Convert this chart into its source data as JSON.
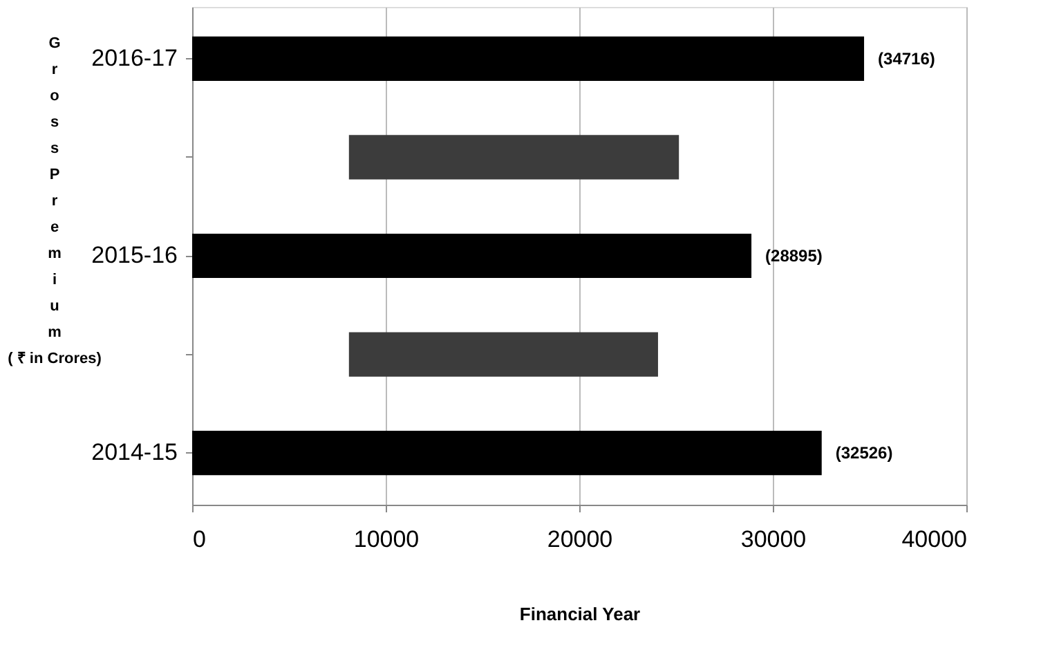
{
  "chart_data": {
    "type": "bar",
    "orientation": "horizontal",
    "xlabel": "Financial Year",
    "ylabel": "Gross Premium",
    "annotations": [
      "( ₹ in Crores)"
    ],
    "categories": [
      "2016-17",
      null,
      "2015-16",
      null,
      "2014-15"
    ],
    "values": [
      34716,
      17050,
      28895,
      15970,
      32526
    ],
    "base": [
      0,
      8100,
      0,
      8100,
      0
    ],
    "colors": [
      "#000000",
      "#3c3c3c",
      "#000000",
      "#3c3c3c",
      "#000000"
    ],
    "value_labels": [
      "(34716)",
      null,
      "(28895)",
      null,
      "(32526)"
    ],
    "xlim": [
      0,
      40000
    ],
    "xticks": [
      0,
      10000,
      20000,
      30000,
      40000
    ],
    "grid": "x"
  }
}
